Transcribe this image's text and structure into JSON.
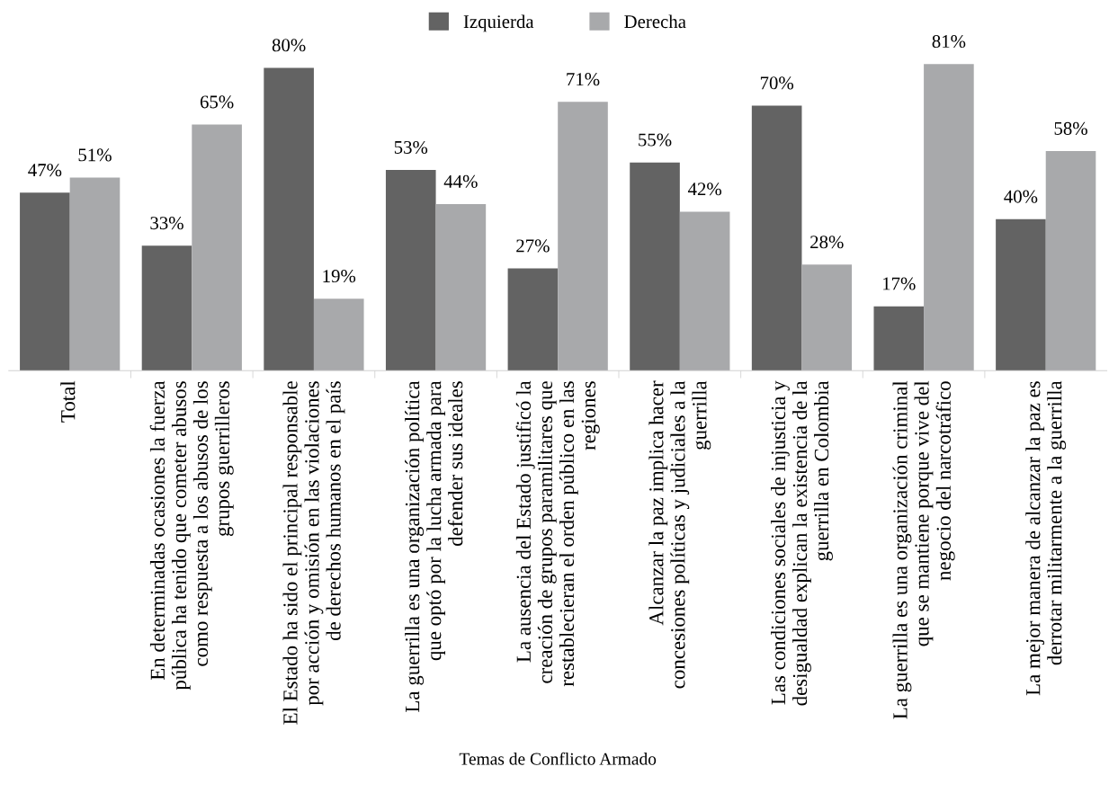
{
  "chart_data": {
    "type": "bar",
    "xlabel": "Temas de Conflicto Armado",
    "categories": [
      "Total",
      "En determinadas ocasiones la fuerza\npública ha tenido que cometer abusos\ncomo respuesta a los abusos de los\ngrupos guerrilleros",
      "El Estado ha sido el principal responsable\npor acción y omisión en las violaciones\nde derechos humanos en el país",
      "La guerrilla es una organización política\nque optó por la lucha armada para\ndefender sus ideales",
      "La ausencia del Estado justificó la\ncreación de grupos paramilitares que\nrestablecieran el orden público en las\nregiones",
      "Alcanzar la paz implica hacer\nconcesiones políticas y judiciales a la\nguerrilla",
      "Las condiciones sociales de injusticia y\ndesigualdad explican la existencia de la\nguerrilla en Colombia",
      "La guerrilla es una organización criminal\nque se mantiene porque vive del\nnegocio del narcotráfico",
      "La mejor manera de alcanzar la paz es\nderrotar militarmente a la guerrilla"
    ],
    "series": [
      {
        "name": "Izquierda",
        "color": "#636363",
        "values": [
          47,
          33,
          80,
          53,
          27,
          55,
          70,
          17,
          40
        ],
        "value_labels": [
          "47%",
          "33%",
          "80%",
          "53%",
          "27%",
          "55%",
          "70%",
          "17%",
          "40%"
        ]
      },
      {
        "name": "Derecha",
        "color": "#a8a9ab",
        "values": [
          51,
          65,
          19,
          44,
          71,
          42,
          28,
          81,
          58
        ],
        "value_labels": [
          "51%",
          "65%",
          "19%",
          "44%",
          "71%",
          "42%",
          "28%",
          "81%",
          "58%"
        ]
      }
    ],
    "tick_labels": "x",
    "legend": "top",
    "grid": false
  }
}
